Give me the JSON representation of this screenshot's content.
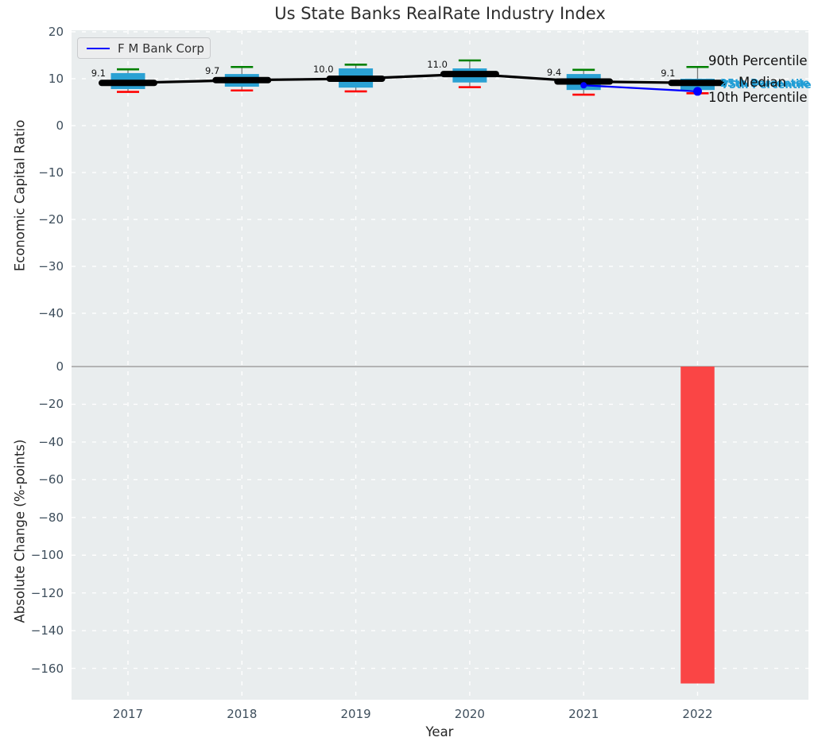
{
  "title": "Us State Banks RealRate Industry Index",
  "legend": {
    "label": "F M Bank Corp"
  },
  "axes": {
    "xlabel": "Year",
    "xticklabels": [
      "2017",
      "2018",
      "2019",
      "2020",
      "2021",
      "2022"
    ],
    "top": {
      "ylabel": "Economic Capital Ratio",
      "yticks": [
        20,
        10,
        0,
        -10,
        -20,
        -30,
        -40
      ]
    },
    "bottom": {
      "ylabel": "Absolute Change (%-points)",
      "yticks": [
        0,
        -20,
        -40,
        -60,
        -80,
        -100,
        -120,
        -140,
        -160
      ]
    }
  },
  "annotations": {
    "p90": "90th Percentile",
    "median": "Median",
    "p25": "25th Percentile",
    "p75": "75th Percentile",
    "p10": "10th Percentile"
  },
  "colors": {
    "plot_bg": "#e9edee",
    "grid": "rgba(255,255,255,0.92)",
    "box": "#2aa1d3",
    "whisker": "#7a7a7a",
    "cap_top_green": "#008000",
    "cap_bottom_red": "#ff0000",
    "median_black": "#000000",
    "company_blue": "#0000ff",
    "bar_red": "#fa4545",
    "zero_line": "#ababab",
    "tick_text": "#3e4e5c",
    "annotation_cyan": "#219ed6"
  },
  "chart_data": [
    {
      "type": "boxplot",
      "title": "Us State Banks RealRate Industry Index",
      "xlabel": "Year",
      "ylabel": "Economic Capital Ratio",
      "categories": [
        2017,
        2018,
        2019,
        2020,
        2021,
        2022
      ],
      "ylim": [
        -50,
        20.4
      ],
      "yticks": [
        20,
        10,
        0,
        -10,
        -20,
        -30,
        -40
      ],
      "grid": true,
      "legend_position": "upper left",
      "boxes": [
        {
          "year": 2017,
          "p10": 7.2,
          "p25": 7.8,
          "median": 9.1,
          "p75": 11.2,
          "p90": 12.0
        },
        {
          "year": 2018,
          "p10": 7.5,
          "p25": 8.3,
          "median": 9.7,
          "p75": 11.0,
          "p90": 12.5
        },
        {
          "year": 2019,
          "p10": 7.3,
          "p25": 8.1,
          "median": 10.0,
          "p75": 12.2,
          "p90": 13.0
        },
        {
          "year": 2020,
          "p10": 8.2,
          "p25": 9.2,
          "median": 11.0,
          "p75": 12.2,
          "p90": 13.9
        },
        {
          "year": 2021,
          "p10": 6.6,
          "p25": 7.6,
          "median": 9.4,
          "p75": 11.0,
          "p90": 11.9
        },
        {
          "year": 2022,
          "p10": 6.9,
          "p25": 7.6,
          "median": 9.1,
          "p75": 10.0,
          "p90": 12.5
        }
      ],
      "median_labels": [
        "9.1",
        "9.7",
        "10.0",
        "11.0",
        "9.4",
        "9.1"
      ],
      "series": [
        {
          "name": "F M Bank Corp",
          "x": [
            2021,
            2022
          ],
          "values": [
            8.6,
            7.3
          ]
        }
      ]
    },
    {
      "type": "bar",
      "xlabel": "Year",
      "ylabel": "Absolute Change (%-points)",
      "categories": [
        2017,
        2018,
        2019,
        2020,
        2021,
        2022
      ],
      "values": [
        null,
        null,
        null,
        null,
        null,
        -168
      ],
      "ylim": [
        -177,
        2.5
      ],
      "yticks": [
        0,
        -20,
        -40,
        -60,
        -80,
        -100,
        -120,
        -140,
        -160
      ],
      "grid": true
    }
  ]
}
